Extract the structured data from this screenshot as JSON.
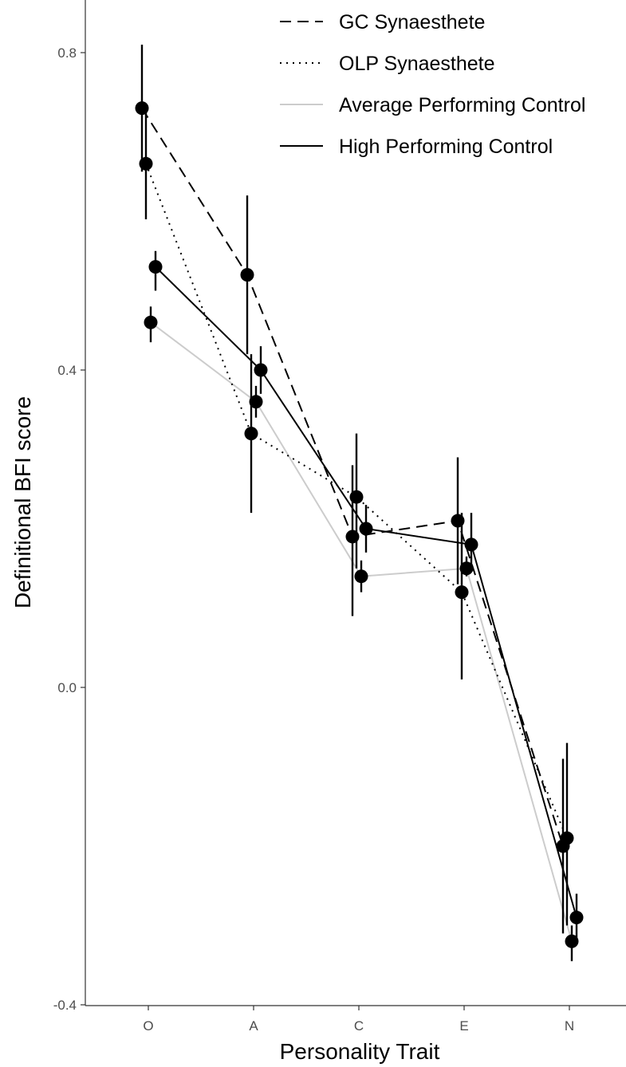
{
  "chart_data": {
    "type": "line",
    "title": "",
    "xlabel": "Personality Trait",
    "ylabel": "Definitional BFI score",
    "categories": [
      "O",
      "A",
      "C",
      "E",
      "N"
    ],
    "ylim": [
      -0.4,
      0.8
    ],
    "yticks": [
      {
        "value": -0.4,
        "label": "-0.4"
      },
      {
        "value": 0.0,
        "label": "0.0"
      },
      {
        "value": 0.4,
        "label": "0.4"
      },
      {
        "value": 0.8,
        "label": "0.8"
      }
    ],
    "grid": false,
    "legend_position": "top-right",
    "error_bars": true,
    "series": [
      {
        "name": "GC Synaesthete",
        "line_style": "dashed",
        "color": "#000000",
        "values": [
          0.73,
          0.52,
          0.19,
          0.21,
          -0.2
        ],
        "err_low": [
          0.65,
          0.42,
          0.09,
          0.13,
          -0.31
        ],
        "err_high": [
          0.81,
          0.62,
          0.28,
          0.29,
          -0.09
        ]
      },
      {
        "name": "OLP Synaesthete",
        "line_style": "dotted",
        "color": "#000000",
        "values": [
          0.66,
          0.32,
          0.24,
          0.12,
          -0.19
        ],
        "err_low": [
          0.59,
          0.22,
          0.15,
          0.01,
          -0.3
        ],
        "err_high": [
          0.73,
          0.42,
          0.32,
          0.22,
          -0.07
        ]
      },
      {
        "name": "Average Performing Control",
        "line_style": "solid",
        "color": "#cccccc",
        "values": [
          0.46,
          0.36,
          0.14,
          0.15,
          -0.32
        ],
        "err_low": [
          0.435,
          0.34,
          0.12,
          0.14,
          -0.345
        ],
        "err_high": [
          0.48,
          0.38,
          0.16,
          0.165,
          -0.3
        ]
      },
      {
        "name": "High Performing Control",
        "line_style": "solid",
        "color": "#000000",
        "values": [
          0.53,
          0.4,
          0.2,
          0.18,
          -0.29
        ],
        "err_low": [
          0.5,
          0.37,
          0.17,
          0.15,
          -0.32
        ],
        "err_high": [
          0.55,
          0.43,
          0.23,
          0.22,
          -0.26
        ]
      }
    ]
  }
}
